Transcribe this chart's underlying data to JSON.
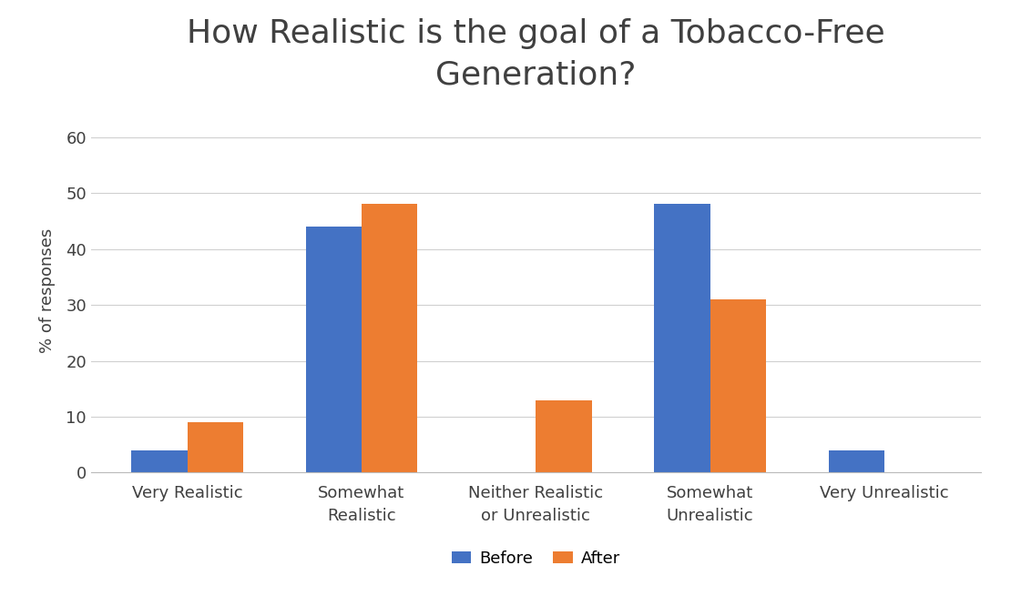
{
  "title": "How Realistic is the goal of a Tobacco-Free\nGeneration?",
  "categories": [
    "Very Realistic",
    "Somewhat\nRealistic",
    "Neither Realistic\nor Unrealistic",
    "Somewhat\nUnrealistic",
    "Very Unrealistic"
  ],
  "before": [
    4,
    44,
    0,
    48,
    4
  ],
  "after": [
    9,
    48,
    13,
    31,
    0
  ],
  "before_color": "#4472C4",
  "after_color": "#ED7D31",
  "ylabel": "% of responses",
  "ylim": [
    0,
    65
  ],
  "yticks": [
    0,
    10,
    20,
    30,
    40,
    50,
    60
  ],
  "legend_labels": [
    "Before",
    "After"
  ],
  "bar_width": 0.32,
  "title_fontsize": 26,
  "axis_fontsize": 13,
  "tick_fontsize": 13,
  "legend_fontsize": 13,
  "background_color": "#ffffff",
  "grid_color": "#d0d0d0",
  "text_color": "#404040"
}
